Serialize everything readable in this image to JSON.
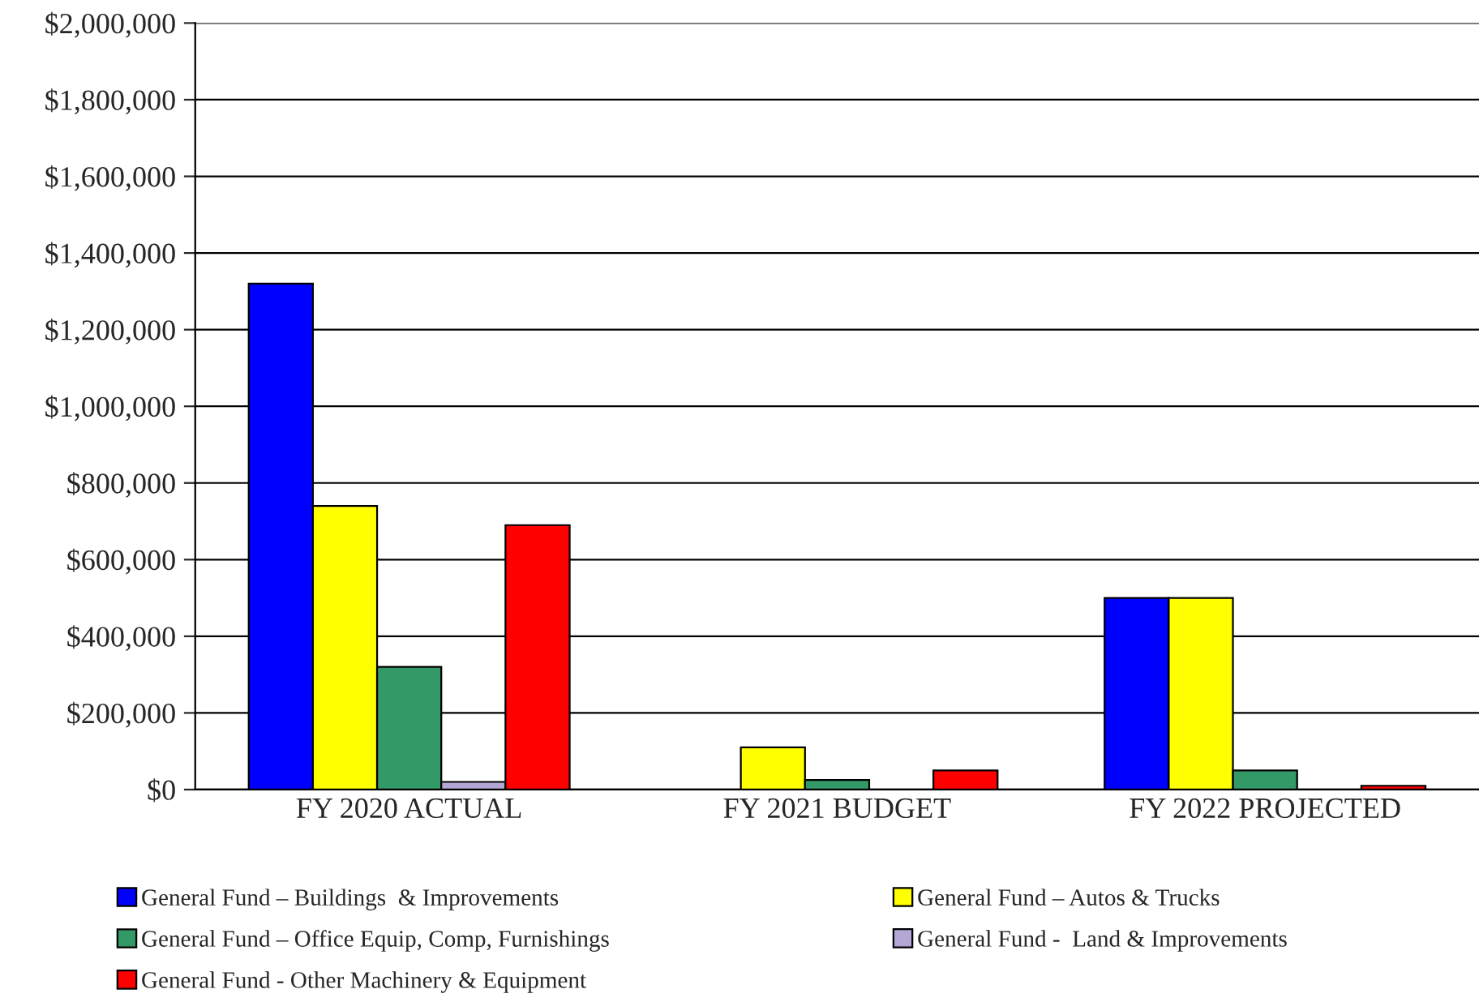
{
  "chart_data": {
    "type": "bar",
    "categories": [
      "FY 2020 ACTUAL",
      "FY 2021 BUDGET",
      "FY 2022 PROJECTED"
    ],
    "series": [
      {
        "name": "General Fund – Buildings  & Improvements",
        "color": "#0000ff",
        "values": [
          1320000,
          null,
          500000
        ]
      },
      {
        "name": "General Fund – Autos & Trucks",
        "color": "#ffff00",
        "values": [
          740000,
          110000,
          500000
        ]
      },
      {
        "name": "General Fund – Office Equip, Comp, Furnishings",
        "color": "#339966",
        "values": [
          320000,
          25000,
          50000
        ]
      },
      {
        "name": "General Fund -  Land & Improvements",
        "color": "#b4a7d6",
        "values": [
          20000,
          null,
          null
        ]
      },
      {
        "name": "General Fund - Other Machinery & Equipment",
        "color": "#ff0000",
        "values": [
          690000,
          50000,
          10000
        ]
      }
    ],
    "ylim": [
      0,
      2000000
    ],
    "yticks": [
      {
        "value": 0,
        "label": "$0"
      },
      {
        "value": 200000,
        "label": "$200,000"
      },
      {
        "value": 400000,
        "label": "$400,000"
      },
      {
        "value": 600000,
        "label": "$600,000"
      },
      {
        "value": 800000,
        "label": "$800,000"
      },
      {
        "value": 1000000,
        "label": "$1,000,000"
      },
      {
        "value": 1200000,
        "label": "$1,200,000"
      },
      {
        "value": 1400000,
        "label": "$1,400,000"
      },
      {
        "value": 1600000,
        "label": "$1,600,000"
      },
      {
        "value": 1800000,
        "label": "$1,800,000"
      },
      {
        "value": 2000000,
        "label": "$2,000,000"
      }
    ],
    "grid": "y",
    "legend": "bottom"
  }
}
